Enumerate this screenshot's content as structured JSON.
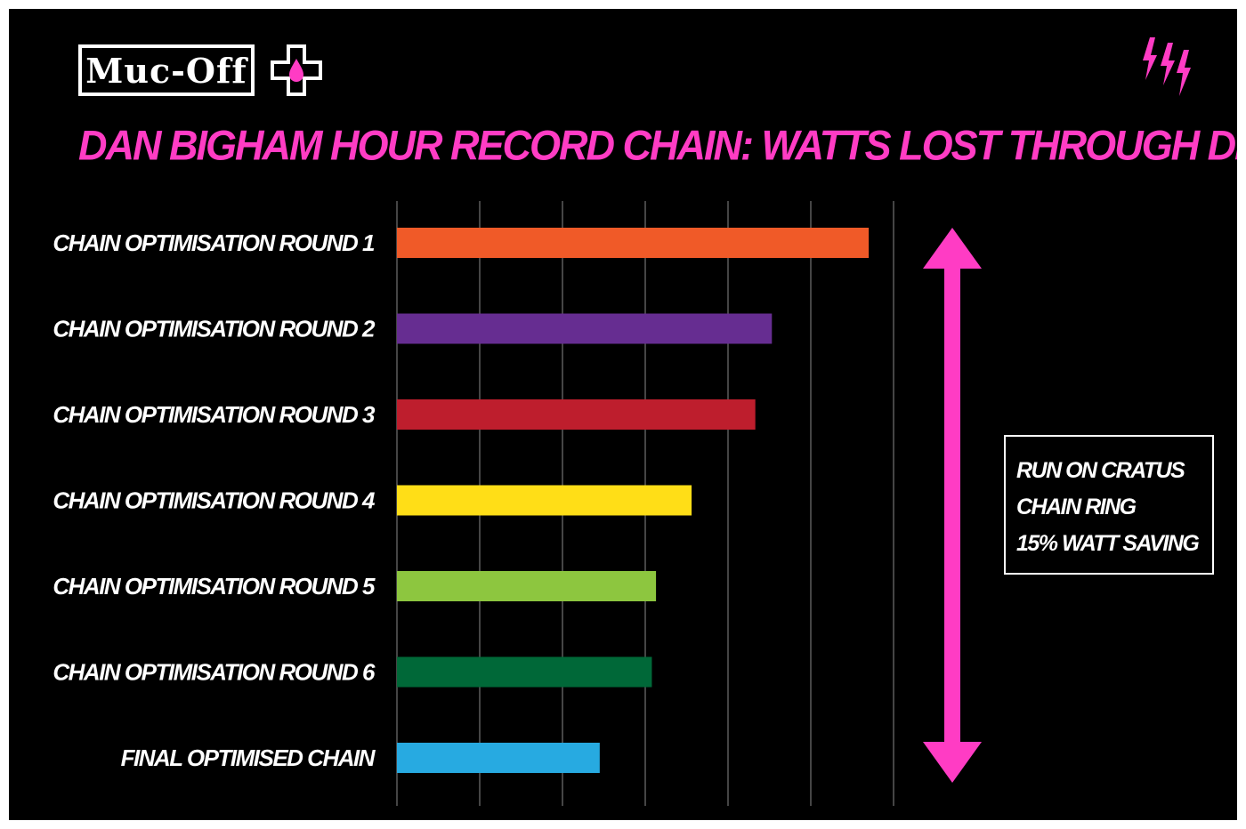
{
  "brand": {
    "logo_text": "Muc-Off",
    "accent_color": "#ff3cc4",
    "cross_icon": "drop-cross-icon",
    "bolts_icon": "lightning-bolts-icon"
  },
  "chart_data": {
    "type": "bar",
    "orientation": "horizontal",
    "title": "DAN BIGHAM HOUR RECORD CHAIN: WATTS LOST THROUGH DRIVETRAIN",
    "categories": [
      "CHAIN OPTIMISATION ROUND 1",
      "CHAIN OPTIMISATION ROUND 2",
      "CHAIN OPTIMISATION ROUND 3",
      "CHAIN OPTIMISATION ROUND 4",
      "CHAIN OPTIMISATION ROUND 5",
      "CHAIN OPTIMISATION ROUND 6",
      "FINAL OPTIMISED CHAIN"
    ],
    "values": [
      5.7,
      4.53,
      4.33,
      3.56,
      3.13,
      3.08,
      2.45
    ],
    "colors": [
      "#f05a28",
      "#662d91",
      "#be1e2d",
      "#ffde17",
      "#8dc63f",
      "#006838",
      "#27aae1"
    ],
    "xlim": [
      0,
      6
    ],
    "grid": true,
    "gridline_count": 7,
    "background": "#000000",
    "annotation": {
      "arrow_color": "#ff3cc4",
      "lines": [
        "RUN ON CRATUS",
        "CHAIN RING",
        "15% WATT SAVING"
      ]
    }
  }
}
